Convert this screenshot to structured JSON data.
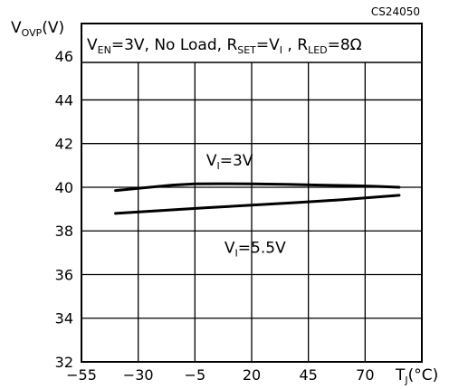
{
  "chart_data": {
    "type": "line",
    "figure_id": "CS24050",
    "ylabel": {
      "main": "V",
      "sub": "OVP",
      "unit": "(V)"
    },
    "xlabel": {
      "main": "T",
      "sub": "J",
      "unit": "(°C)"
    },
    "conditions": [
      {
        "main": "V",
        "sub": "EN",
        "after": "=3V,  No Load, "
      },
      {
        "main": "R",
        "sub": "SET",
        "after": "=V"
      },
      {
        "main": "",
        "sub": "I",
        "after": " , "
      },
      {
        "main": "R",
        "sub": "LED",
        "after": "=8Ω"
      }
    ],
    "xlim": [
      -55,
      95
    ],
    "ylim": [
      32,
      47.5
    ],
    "xticks": [
      -55,
      -30,
      -5,
      20,
      45,
      70
    ],
    "yticks": [
      32,
      34,
      36,
      38,
      40,
      42,
      44,
      46
    ],
    "grid": true,
    "series": [
      {
        "name": "VI=3V",
        "label": {
          "main": "V",
          "sub": "I",
          "after": "=3V"
        },
        "label_at": {
          "x": 0,
          "y": 41.0
        },
        "x": [
          -40,
          -25,
          -15,
          -5,
          5,
          20,
          35,
          50,
          65,
          75,
          85
        ],
        "y": [
          39.85,
          40.0,
          40.1,
          40.15,
          40.16,
          40.15,
          40.13,
          40.1,
          40.07,
          40.04,
          40.0
        ]
      },
      {
        "name": "VI=5.5V",
        "label": {
          "main": "V",
          "sub": "I",
          "after": "=5.5V"
        },
        "label_at": {
          "x": 8,
          "y": 37.0
        },
        "x": [
          -40,
          -20,
          0,
          20,
          40,
          60,
          85
        ],
        "y": [
          38.8,
          38.93,
          39.06,
          39.18,
          39.3,
          39.43,
          39.63
        ]
      }
    ]
  }
}
